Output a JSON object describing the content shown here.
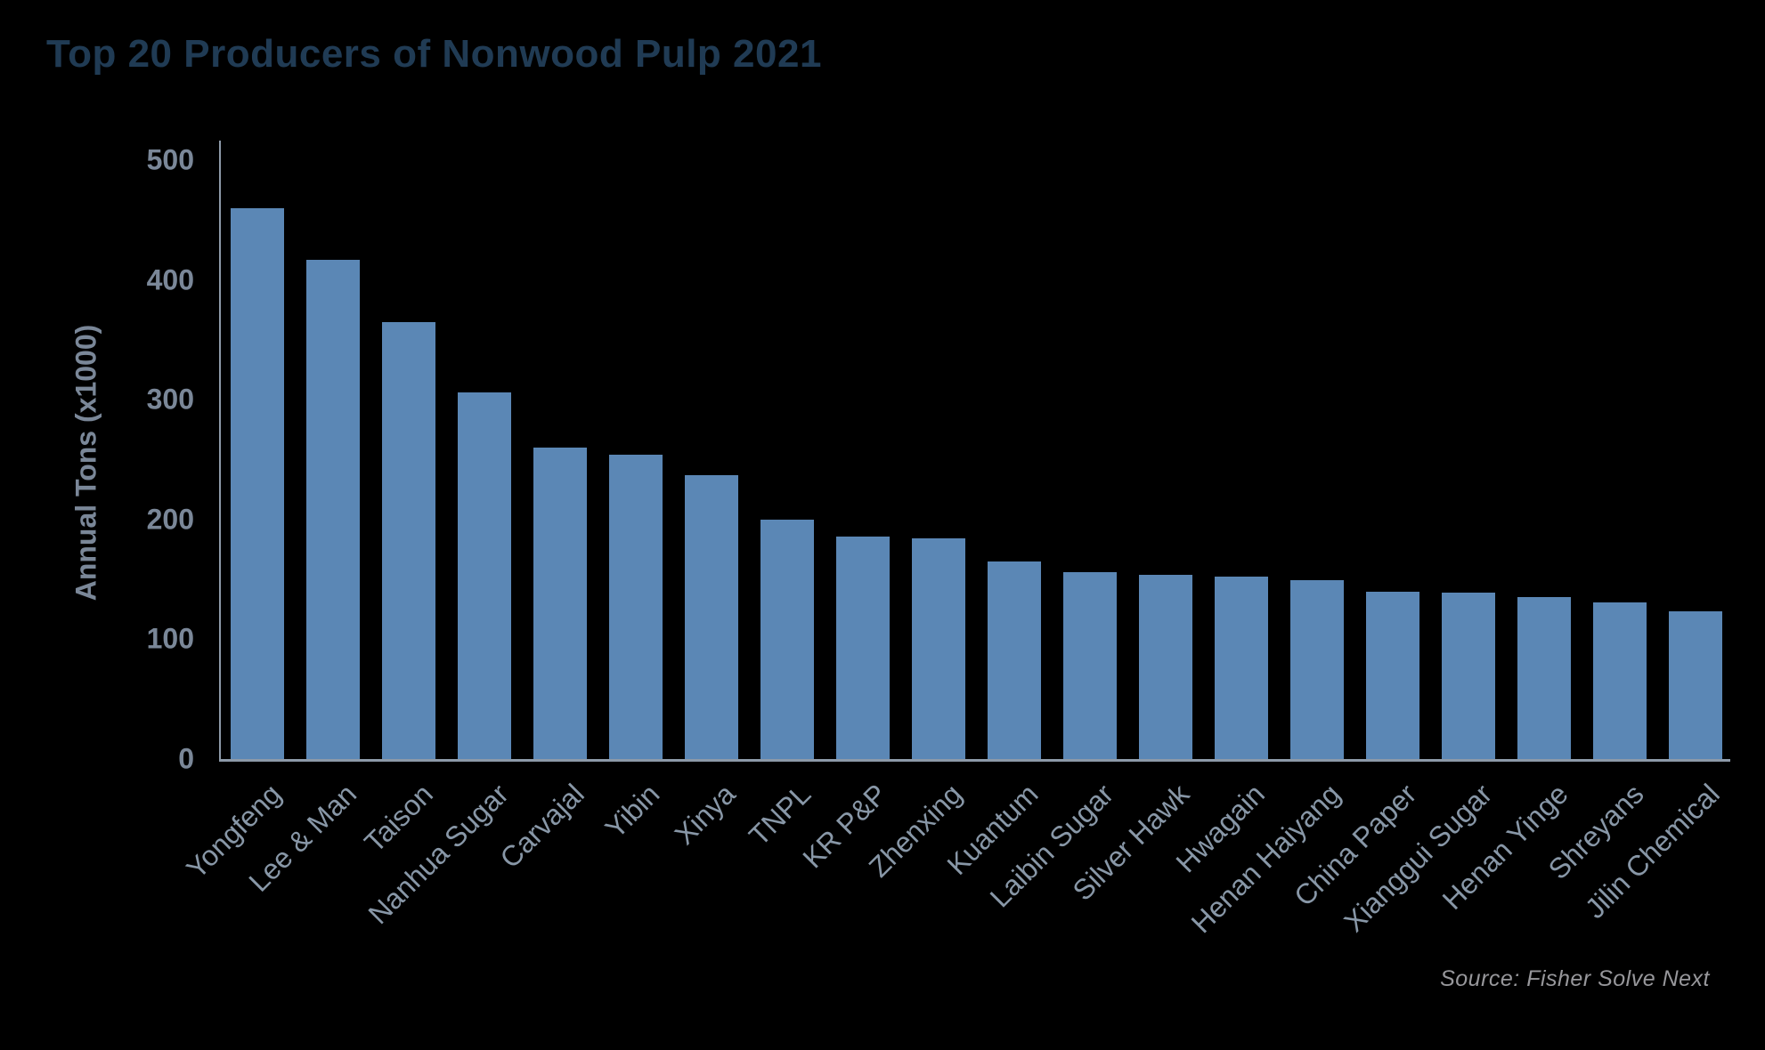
{
  "title": "Top 20 Producers of Nonwood Pulp 2021",
  "source": "Source: Fisher Solve Next",
  "colors": {
    "background": "#000000",
    "bar": "#5b87b5",
    "title_text": "#203b54",
    "axis_line": "#8d9aa9",
    "tick_text": "#7a8798",
    "xlabel_text": "#8897a7",
    "source_text": "#97979b"
  },
  "chart_data": {
    "type": "bar",
    "title": "Top 20 Producers of Nonwood Pulp 2021",
    "xlabel": "",
    "ylabel": "Annual Tons (x1000)",
    "ylim": [
      0,
      500
    ],
    "yticks": [
      0,
      100,
      200,
      300,
      400,
      500
    ],
    "grid": false,
    "legend": "none",
    "categories": [
      "Yongfeng",
      "Lee & Man",
      "Taison",
      "Nanhua Sugar",
      "Carvajal",
      "Yibin",
      "Xinya",
      "TNPL",
      "KR P&P",
      "Zhenxing",
      "Kuantum",
      "Laibin Sugar",
      "Silver Hawk",
      "Hwagain",
      "Henan Haiyang",
      "China Paper",
      "Xianggui Sugar",
      "Henan Yinge",
      "Shreyans",
      "Jilin Chemical"
    ],
    "values": [
      460,
      417,
      365,
      306,
      260,
      254,
      237,
      200,
      186,
      184,
      165,
      156,
      154,
      152,
      149,
      140,
      139,
      135,
      131,
      123
    ]
  }
}
